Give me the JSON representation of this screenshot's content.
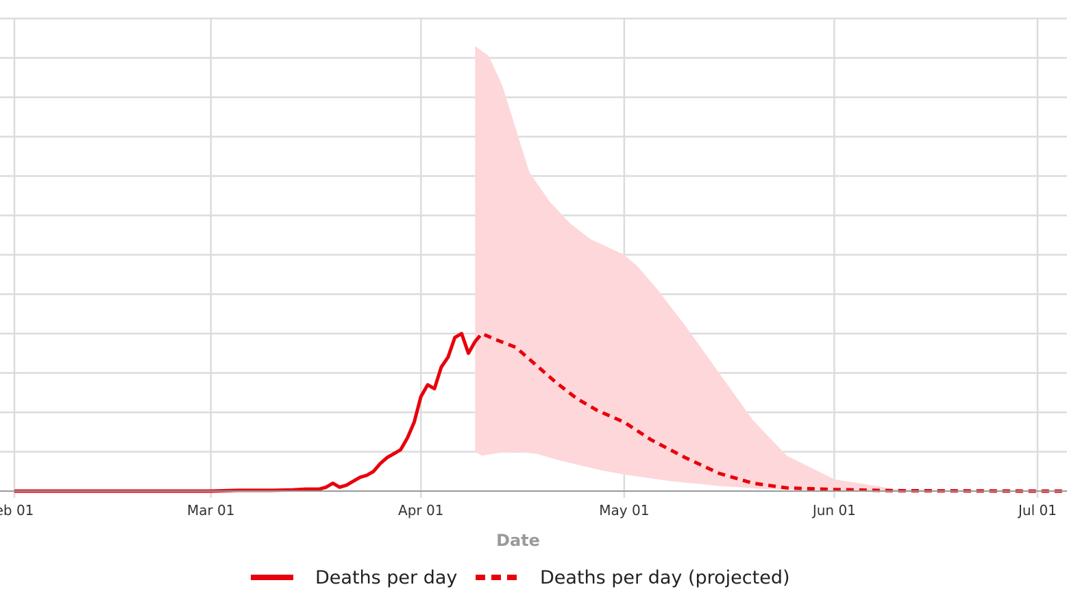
{
  "colors": {
    "line": "#e8000b",
    "band": "#fdd7da",
    "grid": "#dcdcdc",
    "axis": "#999999",
    "axis_title": "#9a9a9a"
  },
  "chart_data": {
    "type": "line",
    "xlabel": "Date",
    "ylabel": "",
    "x_tick_labels": [
      "eb 01",
      "Mar 01",
      "Apr 01",
      "May 01",
      "Jun 01",
      "Jul 01"
    ],
    "x_ticks": [
      "2020-02-01",
      "2020-03-01",
      "2020-04-01",
      "2020-05-01",
      "2020-06-01",
      "2020-07-01"
    ],
    "y_ticks": [
      0,
      1,
      2,
      3,
      4,
      5,
      6,
      7,
      8,
      9,
      10,
      11,
      12
    ],
    "ylim": [
      0,
      12
    ],
    "grid": true,
    "legend_position": "bottom",
    "series": [
      {
        "name": "Deaths per day",
        "style": "solid",
        "points": [
          [
            "2020-02-01",
            0
          ],
          [
            "2020-03-01",
            0
          ],
          [
            "2020-03-05",
            0.02
          ],
          [
            "2020-03-10",
            0.02
          ],
          [
            "2020-03-13",
            0.03
          ],
          [
            "2020-03-15",
            0.05
          ],
          [
            "2020-03-17",
            0.05
          ],
          [
            "2020-03-18",
            0.1
          ],
          [
            "2020-03-19",
            0.2
          ],
          [
            "2020-03-20",
            0.1
          ],
          [
            "2020-03-21",
            0.15
          ],
          [
            "2020-03-22",
            0.25
          ],
          [
            "2020-03-23",
            0.35
          ],
          [
            "2020-03-24",
            0.4
          ],
          [
            "2020-03-25",
            0.5
          ],
          [
            "2020-03-26",
            0.7
          ],
          [
            "2020-03-27",
            0.85
          ],
          [
            "2020-03-28",
            0.95
          ],
          [
            "2020-03-29",
            1.05
          ],
          [
            "2020-03-30",
            1.35
          ],
          [
            "2020-03-31",
            1.75
          ],
          [
            "2020-04-01",
            2.4
          ],
          [
            "2020-04-02",
            2.7
          ],
          [
            "2020-04-03",
            2.6
          ],
          [
            "2020-04-04",
            3.15
          ],
          [
            "2020-04-05",
            3.4
          ],
          [
            "2020-04-06",
            3.9
          ],
          [
            "2020-04-07",
            4.0
          ],
          [
            "2020-04-08",
            3.5
          ],
          [
            "2020-04-09",
            3.8
          ]
        ]
      },
      {
        "name": "Deaths per day (projected)",
        "style": "dashed",
        "points": [
          [
            "2020-04-09",
            3.8
          ],
          [
            "2020-04-10",
            4.0
          ],
          [
            "2020-04-12",
            3.85
          ],
          [
            "2020-04-15",
            3.65
          ],
          [
            "2020-04-18",
            3.2
          ],
          [
            "2020-04-21",
            2.75
          ],
          [
            "2020-04-24",
            2.35
          ],
          [
            "2020-04-27",
            2.05
          ],
          [
            "2020-05-01",
            1.75
          ],
          [
            "2020-05-05",
            1.3
          ],
          [
            "2020-05-10",
            0.85
          ],
          [
            "2020-05-15",
            0.45
          ],
          [
            "2020-05-20",
            0.2
          ],
          [
            "2020-05-25",
            0.08
          ],
          [
            "2020-06-01",
            0.04
          ],
          [
            "2020-06-10",
            0.01
          ],
          [
            "2020-07-01",
            0
          ],
          [
            "2020-07-05",
            0
          ]
        ]
      }
    ],
    "band": {
      "upper": [
        [
          "2020-04-09",
          11.3
        ],
        [
          "2020-04-11",
          11.05
        ],
        [
          "2020-04-13",
          10.3
        ],
        [
          "2020-04-15",
          9.2
        ],
        [
          "2020-04-17",
          8.1
        ],
        [
          "2020-04-20",
          7.35
        ],
        [
          "2020-04-23",
          6.8
        ],
        [
          "2020-04-26",
          6.4
        ],
        [
          "2020-05-01",
          6.0
        ],
        [
          "2020-05-03",
          5.7
        ],
        [
          "2020-05-06",
          5.1
        ],
        [
          "2020-05-10",
          4.2
        ],
        [
          "2020-05-15",
          3.0
        ],
        [
          "2020-05-20",
          1.8
        ],
        [
          "2020-05-25",
          0.9
        ],
        [
          "2020-06-01",
          0.3
        ],
        [
          "2020-06-10",
          0.05
        ],
        [
          "2020-06-20",
          0
        ]
      ],
      "lower": [
        [
          "2020-04-09",
          1.0
        ],
        [
          "2020-04-10",
          0.9
        ],
        [
          "2020-04-13",
          0.98
        ],
        [
          "2020-04-15",
          1.0
        ],
        [
          "2020-04-18",
          0.95
        ],
        [
          "2020-04-21",
          0.8
        ],
        [
          "2020-04-27",
          0.55
        ],
        [
          "2020-05-01",
          0.42
        ],
        [
          "2020-05-08",
          0.25
        ],
        [
          "2020-05-15",
          0.13
        ],
        [
          "2020-05-22",
          0.05
        ],
        [
          "2020-06-01",
          0.02
        ],
        [
          "2020-06-20",
          0
        ]
      ]
    }
  },
  "legend": {
    "items": [
      {
        "label": "Deaths per day",
        "style": "solid"
      },
      {
        "label": "Deaths per day (projected)",
        "style": "dashed"
      }
    ]
  }
}
